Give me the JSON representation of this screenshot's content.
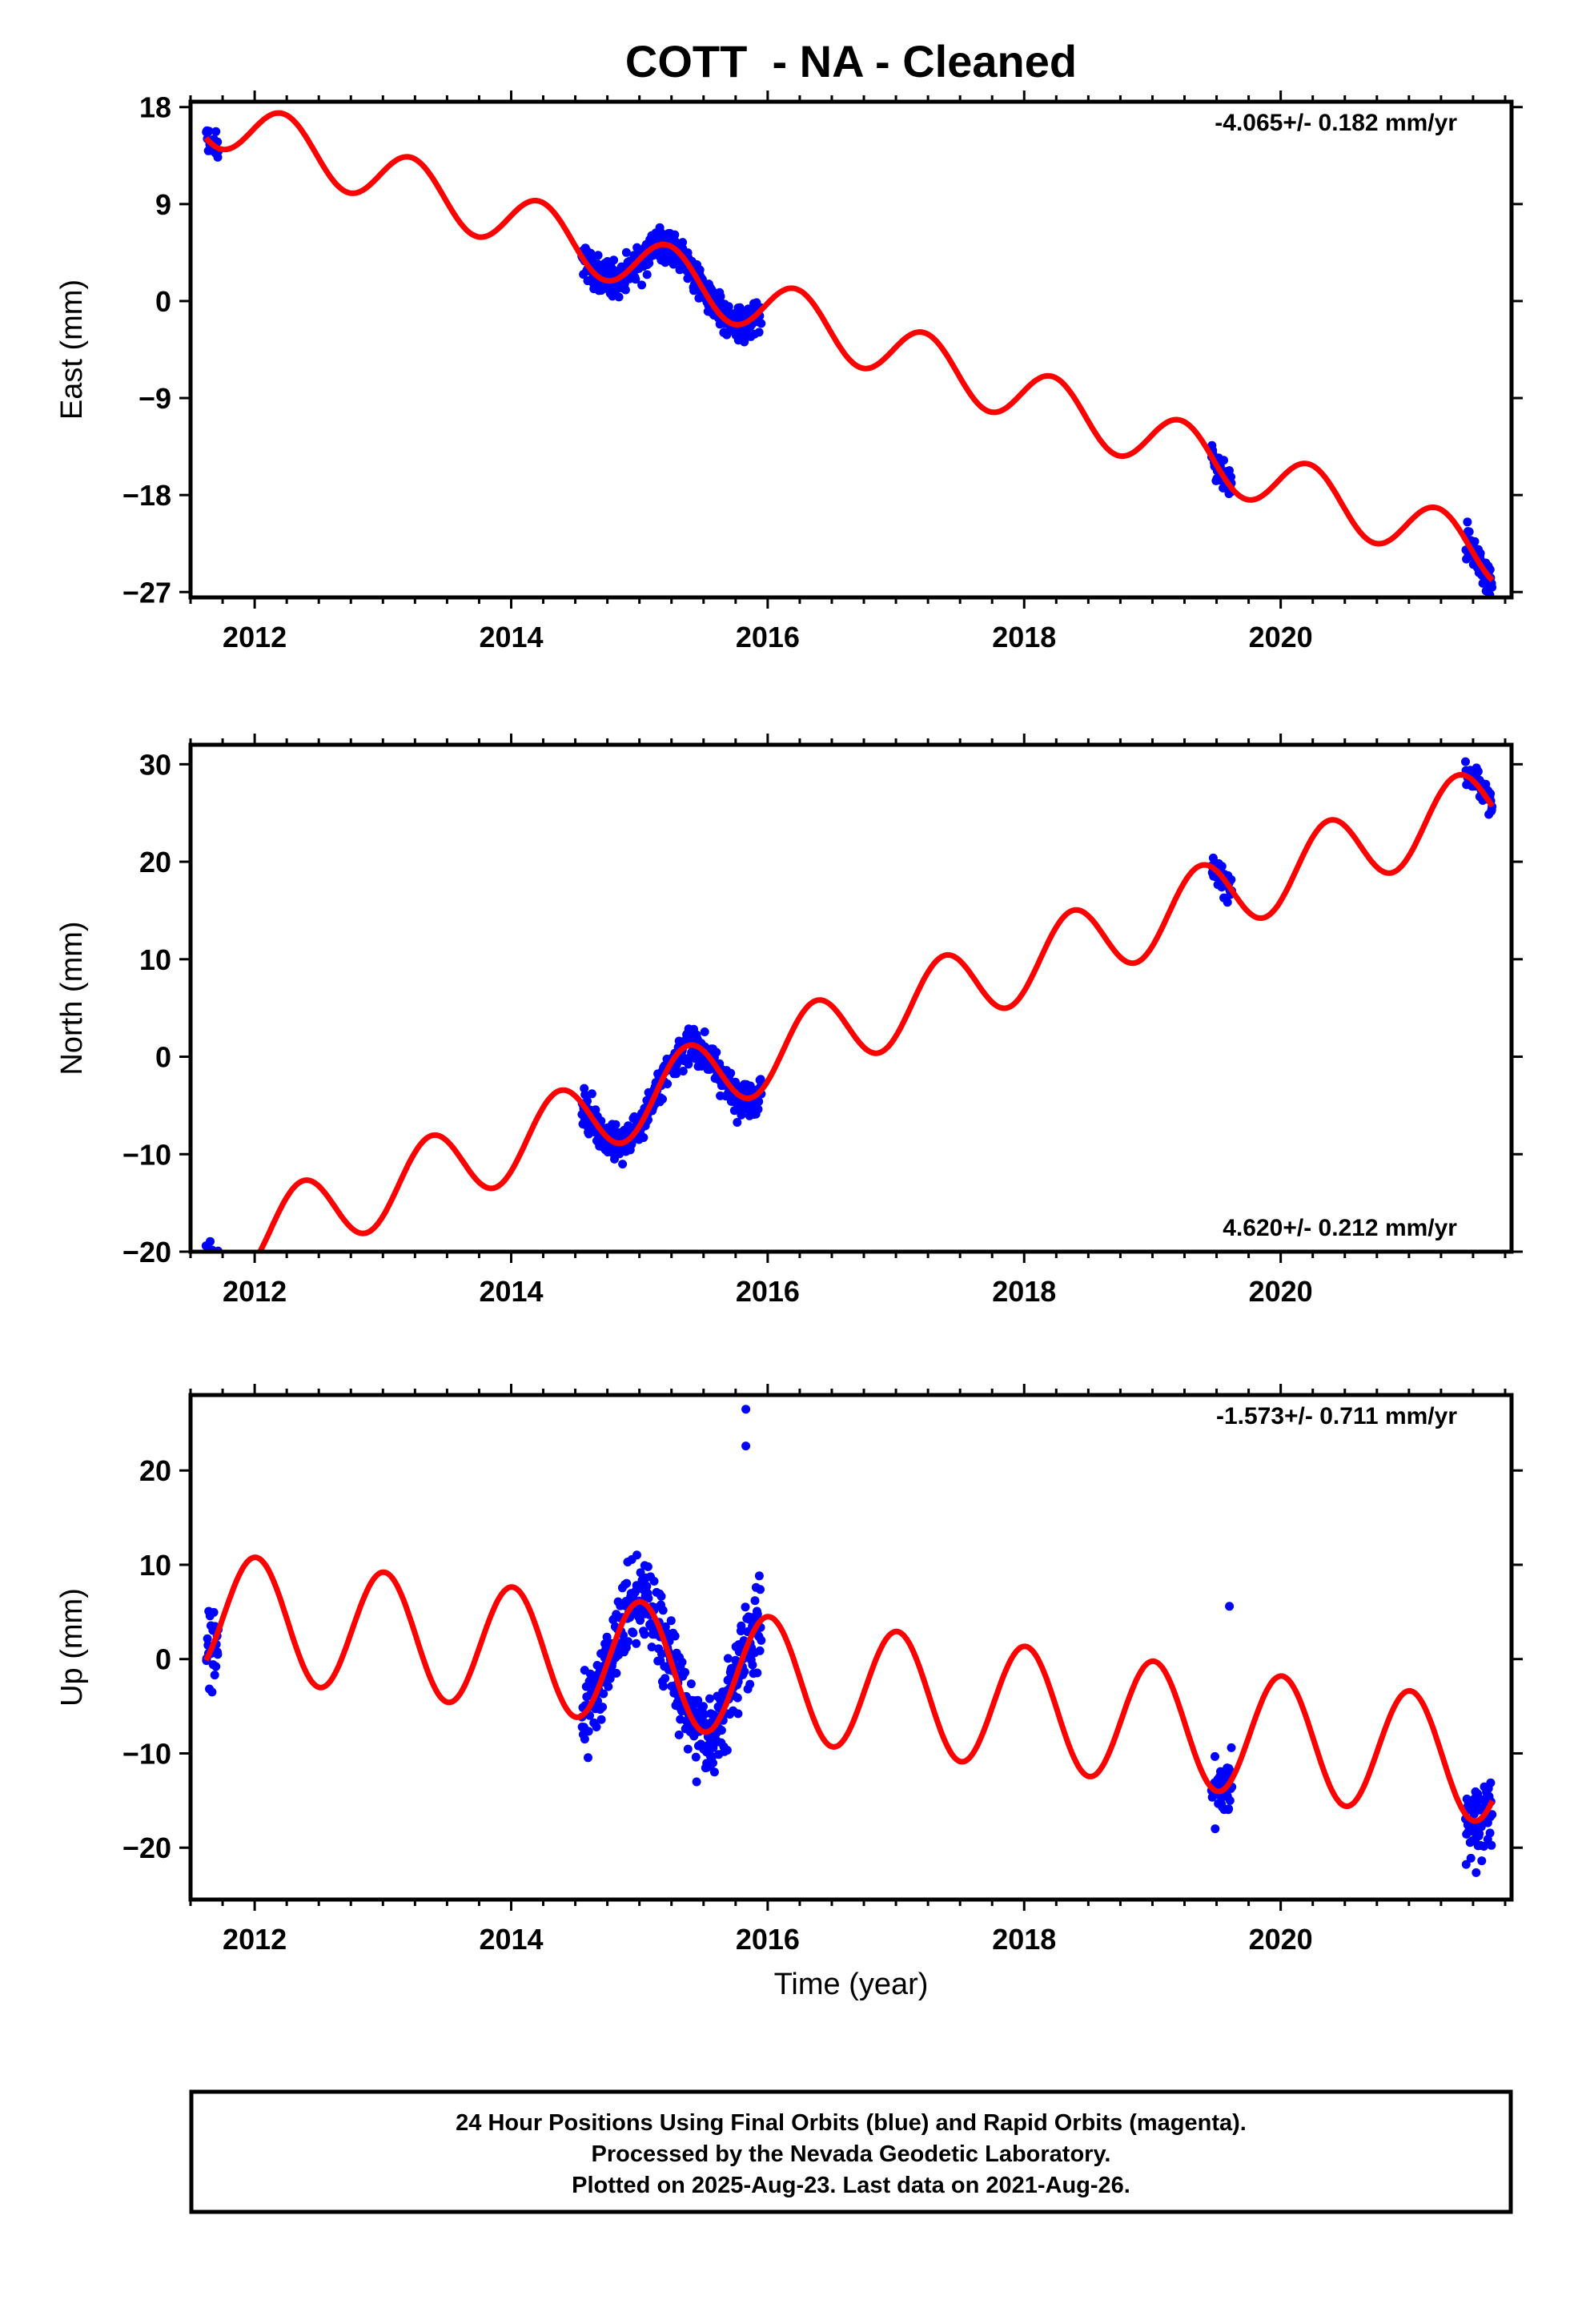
{
  "title": "COTT  - NA - Cleaned",
  "xlabel": "Time (year)",
  "caption": {
    "line1": "24 Hour Positions Using Final Orbits (blue) and Rapid Orbits (magenta).",
    "line2": "Processed by the Nevada Geodetic Laboratory.",
    "line3": "Plotted on 2025-Aug-23. Last data on 2021-Aug-26."
  },
  "colors": {
    "observed": "#0000ff",
    "model": "#ff0000",
    "frame": "#000000"
  },
  "chart_data": [
    {
      "type": "scatter",
      "ylabel": "East (mm)",
      "rate": "-4.065+/- 0.182 mm/yr",
      "rate_position": "top-right",
      "xlim": [
        2011.5,
        2021.8
      ],
      "ylim": [
        -27.5,
        18.5
      ],
      "yticks": [
        18,
        9,
        0,
        -9,
        -18,
        -27
      ],
      "ytick_labels": [
        "18",
        "9",
        "0",
        "−9",
        "−18",
        "−27"
      ],
      "xticks": [
        2012,
        2014,
        2016,
        2018,
        2020
      ],
      "model": {
        "intercept": -0.6,
        "ref_year": 2016.0,
        "slope": -4.065,
        "amp_sin": 2.6,
        "amp_cos": 0.4
      },
      "observed_clusters": [
        {
          "t0": 2011.62,
          "t1": 2011.72,
          "n": 24,
          "spread": 1.3
        },
        {
          "t0": 2014.55,
          "t1": 2015.95,
          "n": 420,
          "spread": 1.2
        },
        {
          "t0": 2019.46,
          "t1": 2019.62,
          "n": 45,
          "spread": 1.0
        },
        {
          "t0": 2021.44,
          "t1": 2021.65,
          "n": 60,
          "spread": 1.2
        }
      ]
    },
    {
      "type": "scatter",
      "ylabel": "North (mm)",
      "rate": "4.620+/- 0.212 mm/yr",
      "rate_position": "bottom-right",
      "xlim": [
        2011.5,
        2021.8
      ],
      "ylim": [
        -20,
        32
      ],
      "yticks": [
        30,
        20,
        10,
        0,
        -10,
        -20
      ],
      "ytick_labels": [
        "30",
        "20",
        "10",
        "0",
        "−10",
        "−20"
      ],
      "xticks": [
        2012,
        2014,
        2016,
        2018,
        2020
      ],
      "model": {
        "intercept": 0.2,
        "ref_year": 2016.0,
        "slope": 4.62,
        "amp_sin": 2.7,
        "amp_cos": -2.7
      },
      "observed_clusters": [
        {
          "t0": 2011.62,
          "t1": 2011.72,
          "n": 24,
          "spread": 1.0
        },
        {
          "t0": 2014.55,
          "t1": 2015.95,
          "n": 420,
          "spread": 1.3
        },
        {
          "t0": 2019.46,
          "t1": 2019.62,
          "n": 45,
          "spread": 1.0
        },
        {
          "t0": 2021.44,
          "t1": 2021.65,
          "n": 60,
          "spread": 1.0
        }
      ]
    },
    {
      "type": "scatter",
      "ylabel": "Up (mm)",
      "rate": "-1.573+/- 0.711 mm/yr",
      "rate_position": "top-right",
      "xlim": [
        2011.5,
        2021.8
      ],
      "ylim": [
        -25.5,
        28
      ],
      "yticks": [
        20,
        10,
        0,
        -10,
        -20
      ],
      "ytick_labels": [
        "20",
        "10",
        "0",
        "−10",
        "−20"
      ],
      "xticks": [
        2012,
        2014,
        2016,
        2018,
        2020
      ],
      "model": {
        "intercept": -2.0,
        "ref_year": 2016.0,
        "slope": -1.573,
        "amp_sin": 0.4,
        "amp_cos": 6.5
      },
      "observed_clusters": [
        {
          "t0": 2011.62,
          "t1": 2011.72,
          "n": 24,
          "spread": 2.6
        },
        {
          "t0": 2014.55,
          "t1": 2015.95,
          "n": 420,
          "spread": 3.2
        },
        {
          "t0": 2019.46,
          "t1": 2019.62,
          "n": 45,
          "spread": 2.6
        },
        {
          "t0": 2021.44,
          "t1": 2021.65,
          "n": 60,
          "spread": 3.0
        }
      ],
      "outliers": [
        {
          "t": 2015.83,
          "v": 26.5
        },
        {
          "t": 2015.83,
          "v": 22.6
        },
        {
          "t": 2019.6,
          "v": 5.6
        }
      ]
    }
  ]
}
